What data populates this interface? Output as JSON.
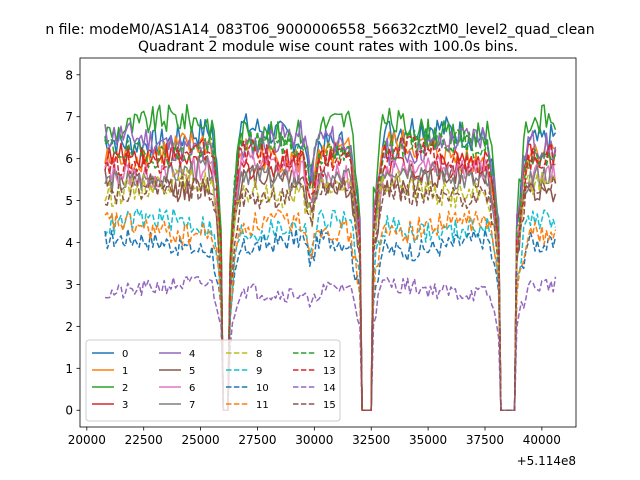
{
  "figure": {
    "suptitle": "n file: modeM0/AS1A14_083T06_9000006558_56632cztM0_level2_quad_clean",
    "title": "Quadrant 2 module wise count rates with 100.0s bins.",
    "offset_label": "+5.114e8"
  },
  "chart_data": {
    "type": "line",
    "title": "Quadrant 2 module wise count rates with 100.0s bins.",
    "xlabel": "",
    "ylabel": "",
    "x_offset": 511400000,
    "xlim": [
      19700,
      41500
    ],
    "ylim": [
      -0.4,
      8.4
    ],
    "xticks": [
      20000,
      22500,
      25000,
      27500,
      30000,
      32500,
      35000,
      37500,
      40000
    ],
    "xtick_labels": [
      "20000",
      "22500",
      "25000",
      "27500",
      "30000",
      "32500",
      "35000",
      "37500",
      "40000"
    ],
    "yticks": [
      0,
      1,
      2,
      3,
      4,
      5,
      6,
      7,
      8
    ],
    "ytick_labels": [
      "0",
      "1",
      "2",
      "3",
      "4",
      "5",
      "6",
      "7",
      "8"
    ],
    "bin_seconds": 100,
    "x_start": 20800,
    "x_end": 40600,
    "gaps_near_zero": [
      [
        26000,
        26250
      ],
      [
        32050,
        32500
      ],
      [
        38150,
        38850
      ]
    ],
    "legend": {
      "placement": "lower-left",
      "columns": 4
    },
    "series": [
      {
        "name": "0",
        "color": "#1f77b4",
        "style": "solid",
        "mean": 6.55,
        "noise": 0.35
      },
      {
        "name": "1",
        "color": "#ff7f0e",
        "style": "solid",
        "mean": 6.15,
        "noise": 0.35
      },
      {
        "name": "2",
        "color": "#2ca02c",
        "style": "solid",
        "mean": 6.75,
        "noise": 0.35
      },
      {
        "name": "3",
        "color": "#d62728",
        "style": "solid",
        "mean": 5.95,
        "noise": 0.3
      },
      {
        "name": "4",
        "color": "#9467bd",
        "style": "solid",
        "mean": 6.35,
        "noise": 0.35
      },
      {
        "name": "5",
        "color": "#8c564b",
        "style": "solid",
        "mean": 5.45,
        "noise": 0.3
      },
      {
        "name": "6",
        "color": "#e377c2",
        "style": "solid",
        "mean": 5.75,
        "noise": 0.3
      },
      {
        "name": "7",
        "color": "#7f7f7f",
        "style": "solid",
        "mean": 5.6,
        "noise": 0.3
      },
      {
        "name": "8",
        "color": "#bcbd22",
        "style": "dashed",
        "mean": 5.3,
        "noise": 0.3
      },
      {
        "name": "9",
        "color": "#17becf",
        "style": "dashed",
        "mean": 4.4,
        "noise": 0.28
      },
      {
        "name": "10",
        "color": "#1f77b4",
        "style": "dashed",
        "mean": 3.95,
        "noise": 0.25
      },
      {
        "name": "11",
        "color": "#ff7f0e",
        "style": "dashed",
        "mean": 4.35,
        "noise": 0.28
      },
      {
        "name": "12",
        "color": "#2ca02c",
        "style": "dashed",
        "mean": 6.25,
        "noise": 0.3
      },
      {
        "name": "13",
        "color": "#d62728",
        "style": "dashed",
        "mean": 6.05,
        "noise": 0.3
      },
      {
        "name": "14",
        "color": "#9467bd",
        "style": "dashed",
        "mean": 2.9,
        "noise": 0.2
      },
      {
        "name": "15",
        "color": "#8c564b",
        "style": "dashed",
        "mean": 5.2,
        "noise": 0.28
      }
    ]
  }
}
